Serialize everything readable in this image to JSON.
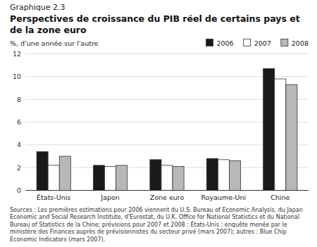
{
  "chart_data": {
    "type": "bar",
    "subtitle": "Graphique 2.3",
    "title": "Perspectives de croissance du PIB réel de certains pays et de la zone euro",
    "ylabel": "%, d'une année sur l'autre",
    "categories": [
      "États-Unis",
      "Japon",
      "Zone euro",
      "Royaume-Uni",
      "Chine"
    ],
    "series": [
      {
        "name": "2006",
        "color": "#1a1a1a",
        "values": [
          3.4,
          2.2,
          2.7,
          2.8,
          10.7
        ]
      },
      {
        "name": "2007",
        "color": "#ffffff",
        "values": [
          2.2,
          2.1,
          2.2,
          2.7,
          9.8
        ]
      },
      {
        "name": "2008",
        "color": "#b8b8b8",
        "values": [
          3.0,
          2.2,
          2.1,
          2.6,
          9.3
        ]
      }
    ],
    "ylim": [
      0,
      12
    ],
    "yticks": [
      0,
      2,
      4,
      6,
      8,
      10,
      12
    ],
    "grid": true,
    "legend": "top",
    "annotations": [
      "Sources : Les premières estimations pour 2006 viennent du U.S. Bureau of Economic Analysis, du Japan Economic and Social Research Institute, d'Eurostat, du U.K. Office for National Statistics et du National Bureau of Statistics de la Chine; prévisions pour 2007 et 2008 : États-Unis : enquête menée par le ministère des Finances auprès de prévisionnistes du secteur privé (mars 2007); autres : Blue Chip Economic Indicators (mars 2007)."
    ]
  }
}
